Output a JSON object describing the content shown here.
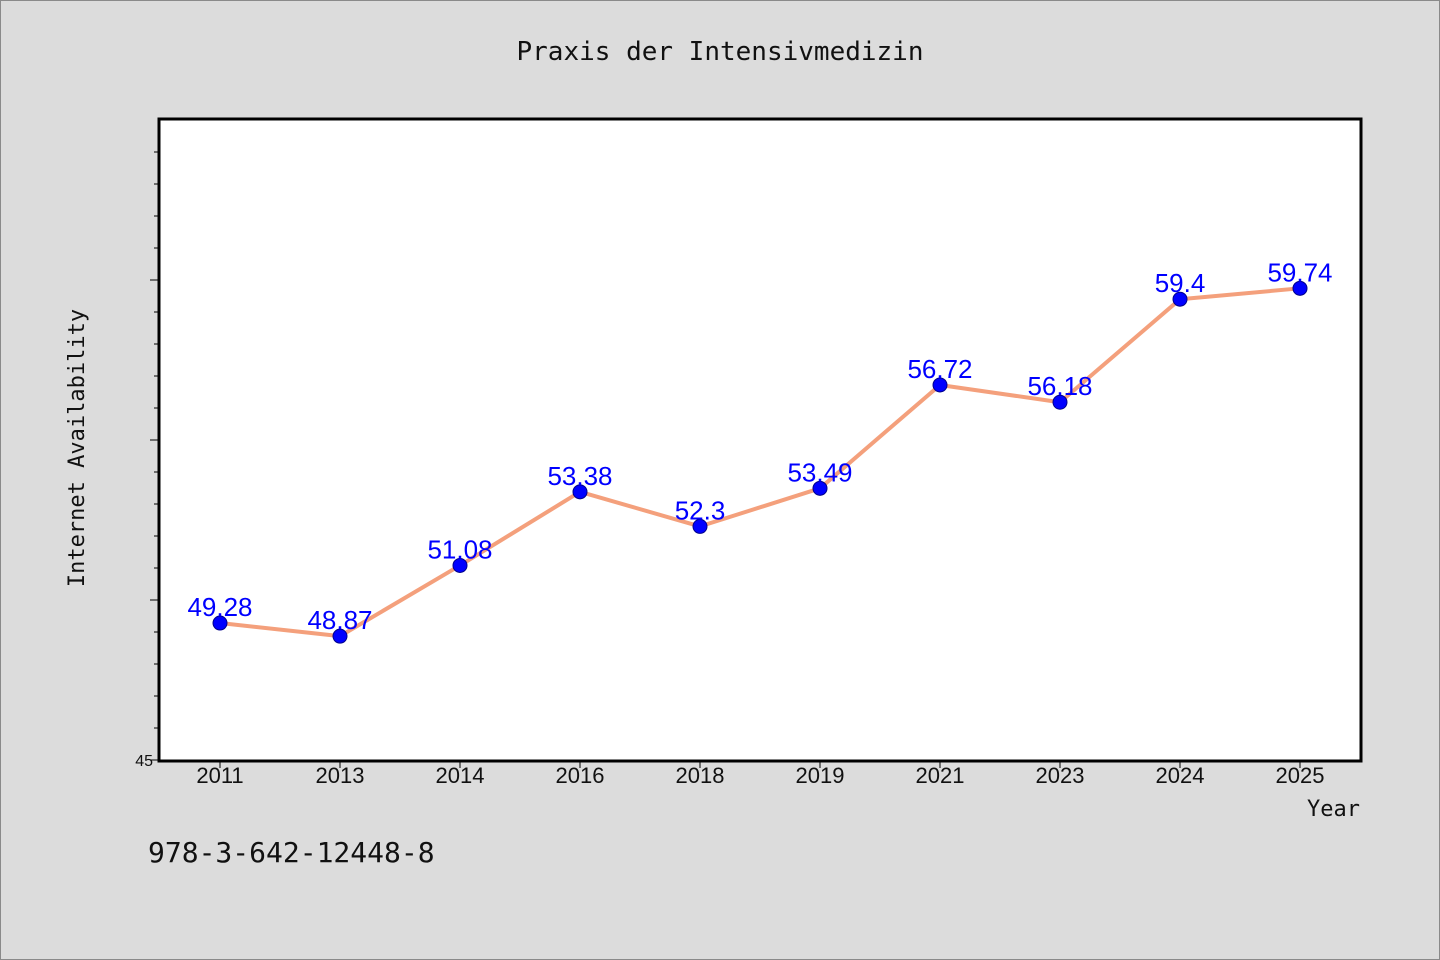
{
  "chart_data": {
    "type": "line",
    "title": "Praxis der Intensivmedizin",
    "xlabel": "Year",
    "ylabel": "Internet Availability",
    "categories": [
      "2011",
      "2013",
      "2014",
      "2016",
      "2018",
      "2019",
      "2021",
      "2023",
      "2024",
      "2025"
    ],
    "series": [
      {
        "values": [
          49.28,
          48.87,
          51.08,
          53.38,
          52.3,
          53.49,
          56.72,
          56.18,
          59.4,
          59.74
        ],
        "labels": [
          "49.28",
          "48.87",
          "51.08",
          "53.38",
          "52.3",
          "53.49",
          "56.72",
          "56.18",
          "59.4",
          "59.74"
        ],
        "line_color": "#f4a07c",
        "marker_color": "#0000ff"
      }
    ],
    "ylim": [
      45,
      65
    ],
    "ytick_labels": [
      "45"
    ],
    "grid": false,
    "legend": "none"
  },
  "footnote": "978-3-642-12448-8",
  "colors": {
    "background": "#dcdcdc",
    "plot_background": "#ffffff",
    "data_label": "#0000ff"
  }
}
